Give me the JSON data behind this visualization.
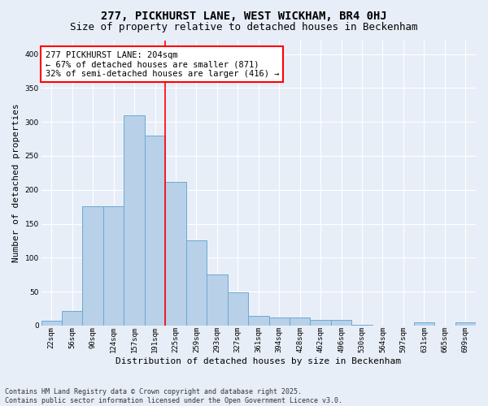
{
  "title1": "277, PICKHURST LANE, WEST WICKHAM, BR4 0HJ",
  "title2": "Size of property relative to detached houses in Beckenham",
  "xlabel": "Distribution of detached houses by size in Beckenham",
  "ylabel": "Number of detached properties",
  "footnote": "Contains HM Land Registry data © Crown copyright and database right 2025.\nContains public sector information licensed under the Open Government Licence v3.0.",
  "bar_labels": [
    "22sqm",
    "56sqm",
    "90sqm",
    "124sqm",
    "157sqm",
    "191sqm",
    "225sqm",
    "259sqm",
    "293sqm",
    "327sqm",
    "361sqm",
    "394sqm",
    "428sqm",
    "462sqm",
    "496sqm",
    "530sqm",
    "564sqm",
    "597sqm",
    "631sqm",
    "665sqm",
    "699sqm"
  ],
  "bar_values": [
    7,
    21,
    176,
    176,
    310,
    280,
    212,
    125,
    75,
    49,
    14,
    12,
    12,
    8,
    8,
    1,
    0,
    0,
    4,
    0,
    4
  ],
  "bar_color": "#b8d0e8",
  "bar_edge_color": "#6aaad4",
  "vline_x": 5.5,
  "vline_color": "red",
  "property_name": "277 PICKHURST LANE: 204sqm",
  "annotation_line1": "← 67% of detached houses are smaller (871)",
  "annotation_line2": "32% of semi-detached houses are larger (416) →",
  "annotation_box_color": "white",
  "annotation_box_edge_color": "red",
  "ylim": [
    0,
    420
  ],
  "yticks": [
    0,
    50,
    100,
    150,
    200,
    250,
    300,
    350,
    400
  ],
  "bg_color": "#e8eef8",
  "plot_bg_color": "#e8eef8",
  "title_fontsize": 10,
  "subtitle_fontsize": 9,
  "axis_label_fontsize": 8,
  "tick_fontsize": 6.5,
  "annotation_fontsize": 7.5
}
